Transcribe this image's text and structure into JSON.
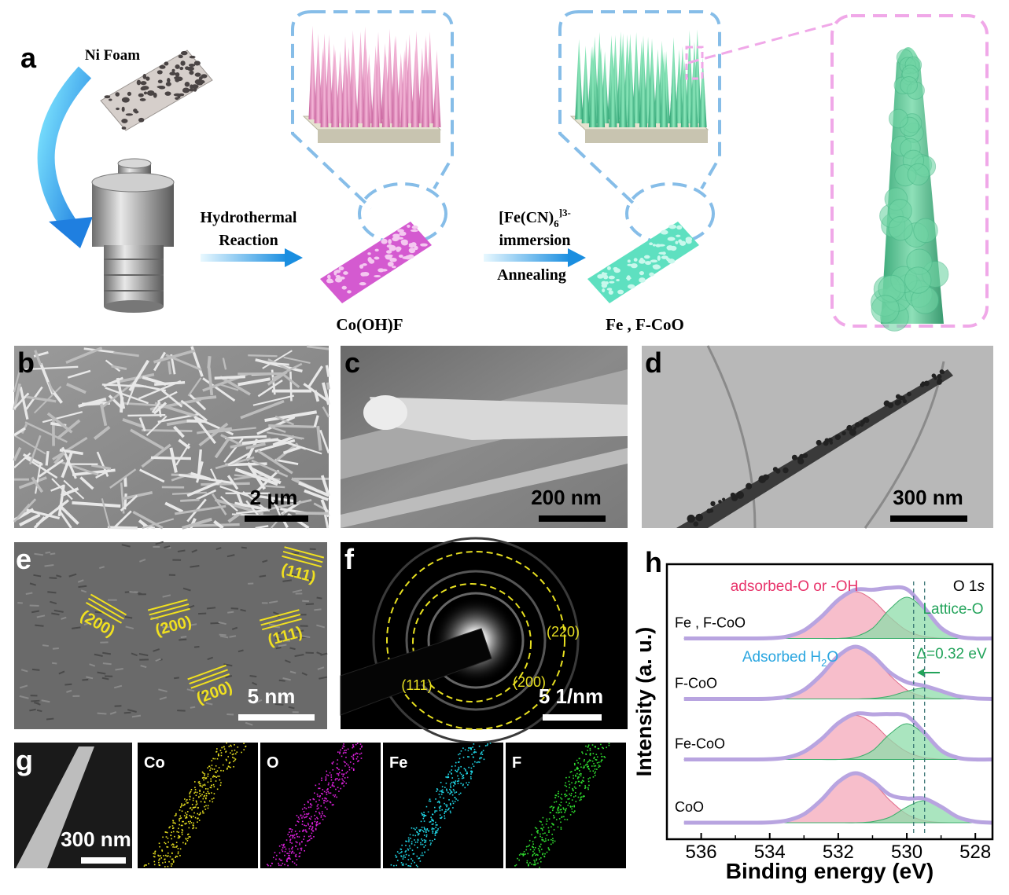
{
  "panels": {
    "a": {
      "label": "a",
      "ni_foam": "Ni Foam",
      "hydrothermal": "Hydrothermal",
      "reaction": "Reaction",
      "fe_cn": "[Fe(CN)",
      "fe_cn_sub": "6",
      "fe_cn_sup": "]3-",
      "immersion": "immersion",
      "annealing": "Annealing",
      "co_oh_f": "Co(OH)F",
      "fe_f_coo": "Fe , F-CoO"
    },
    "b": {
      "label": "b",
      "scale_bar": "2 μm"
    },
    "c": {
      "label": "c",
      "scale_bar": "200 nm"
    },
    "d": {
      "label": "d",
      "scale_bar": "300 nm"
    },
    "e": {
      "label": "e",
      "scale_bar": "5 nm",
      "planes": [
        "(200)",
        "(200)",
        "(200)",
        "(111)",
        "(111)"
      ]
    },
    "f": {
      "label": "f",
      "scale_bar": "5 1/nm",
      "rings": [
        "(111)",
        "(200)",
        "(220)"
      ]
    },
    "g": {
      "label": "g",
      "scale_bar": "300 nm",
      "maps": [
        {
          "element": "Co",
          "color": "#e8e020"
        },
        {
          "element": "O",
          "color": "#e020e0"
        },
        {
          "element": "Fe",
          "color": "#20d8e8"
        },
        {
          "element": "F",
          "color": "#30e030"
        }
      ]
    }
  },
  "chart_data": {
    "type": "line",
    "panel_label": "h",
    "x_label": "Binding energy (eV)",
    "y_label": "Intensity (a. u.)",
    "core_level": "O 1",
    "core_level_italic": "s",
    "adsorbed_label": "adsorbed-O or -OH",
    "lattice_label": "Lattice-O",
    "water_label": "Adsorbed H",
    "water_sub": "2",
    "water_end": "O",
    "shift_label": "Δ=0.32 eV",
    "xlim": [
      537,
      527.5
    ],
    "xticks": [
      536,
      534,
      532,
      530,
      528
    ],
    "ylim": [
      0,
      100
    ],
    "reference_lines": [
      529.8,
      529.48
    ],
    "colors": {
      "envelope": "#b8a4e0",
      "adsorbed": "#f4a8ba",
      "lattice": "#8edcaa"
    },
    "x": [
      536.5,
      536,
      535.5,
      535,
      534.5,
      534,
      533.5,
      533,
      532.5,
      532,
      531.5,
      531,
      530.5,
      530,
      529.5,
      529,
      528.5,
      528,
      527.5
    ],
    "samples": [
      {
        "name": "Fe , F-CoO",
        "envelope": [
          73,
          73,
          73,
          73,
          73,
          73.1,
          73.7,
          75.9,
          80.8,
          87,
          90.7,
          90.7,
          91.4,
          90.9,
          84.3,
          76.8,
          73.7,
          73,
          73
        ],
        "adsorbed": [
          73,
          73,
          73,
          73,
          73,
          73.1,
          73.7,
          75.9,
          80.8,
          87,
          90,
          87,
          80.8,
          75.9,
          73.7,
          73.1,
          73,
          73,
          73
        ],
        "lattice": [
          73,
          73,
          73,
          73,
          73,
          73,
          73,
          73,
          73,
          73,
          73.7,
          76.7,
          83.6,
          88,
          83.6,
          76.7,
          73.7,
          73,
          73
        ]
      },
      {
        "name": "F-CoO",
        "envelope": [
          51,
          51,
          51,
          51,
          51,
          51.1,
          51.8,
          54.3,
          59.7,
          66.6,
          70,
          66.8,
          60.7,
          57.1,
          55.8,
          53.9,
          52,
          51.2,
          51
        ],
        "adsorbed": [
          51,
          51,
          51,
          51,
          51,
          51.1,
          51.8,
          54.3,
          59.7,
          66.6,
          70,
          66.6,
          59.7,
          54.3,
          51.8,
          51.1,
          51,
          51,
          51
        ],
        "lattice": [
          51,
          51,
          51,
          51,
          51,
          51,
          51,
          51,
          51,
          51,
          51,
          51.2,
          52,
          53.8,
          55,
          53.8,
          52,
          51.2,
          51
        ]
      },
      {
        "name": "Fe-CoO",
        "envelope": [
          29,
          29,
          29,
          29,
          29,
          29.1,
          29.7,
          31.8,
          36.3,
          42.2,
          45.6,
          45.4,
          45.5,
          44.8,
          38.9,
          32.3,
          29.6,
          29,
          29
        ],
        "adsorbed": [
          29,
          29,
          29,
          29,
          29,
          29.1,
          29.7,
          31.8,
          36.3,
          42.2,
          45,
          42.2,
          36.3,
          31.8,
          29.7,
          29.1,
          29,
          29,
          29
        ],
        "lattice": [
          29,
          29,
          29,
          29,
          29,
          29,
          29,
          29,
          29,
          29,
          29.6,
          32.2,
          38.2,
          42,
          38.2,
          32.2,
          29.6,
          29,
          29
        ]
      },
      {
        "name": "CoO",
        "envelope": [
          6,
          6,
          6,
          6,
          6,
          6.1,
          6.8,
          9.1,
          14.2,
          20.8,
          24,
          21.2,
          16.2,
          14.8,
          14.8,
          11.8,
          8,
          6.4,
          6
        ],
        "adsorbed": [
          6,
          6,
          6,
          6,
          6,
          6.1,
          6.8,
          9.1,
          14.2,
          20.8,
          24,
          20.8,
          14.2,
          9.1,
          6.8,
          6.1,
          6,
          6,
          6
        ],
        "lattice": [
          6,
          6,
          6,
          6,
          6,
          6,
          6,
          6,
          6,
          6,
          6,
          6.4,
          8,
          11.7,
          14,
          11.7,
          8,
          6.4,
          6
        ]
      }
    ]
  }
}
